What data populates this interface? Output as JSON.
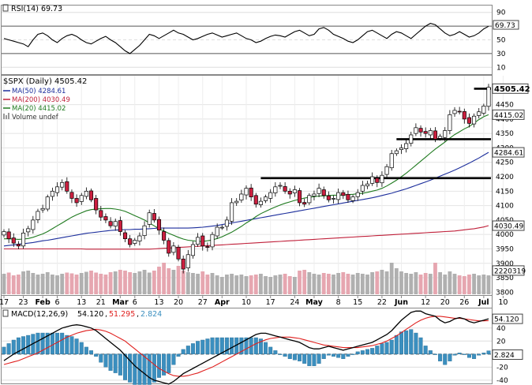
{
  "chart_data": {
    "type": "candlestick",
    "symbol_label": "$SPX (Daily)",
    "last_price": "4505.42",
    "colors": {
      "up": "#ffffff",
      "down": "#cc1f3f",
      "ma50": "#1c2e9c",
      "ma200": "#c0203a",
      "ma20": "#1f7a1f",
      "vol_up": "#b0b0b0",
      "vol_down": "#e6a6b0",
      "macd": "#000000",
      "macd_signal": "#e0201e",
      "macd_hist": "#3b8fbf",
      "rsi": "#000000",
      "support": "#000000"
    },
    "rsi_panel": {
      "legend": "RSI(14) 69.73",
      "last_value": "69.73",
      "ticks": [
        "90",
        "70",
        "50",
        "30",
        "10"
      ],
      "ylim": [
        0,
        100
      ],
      "series": [
        52,
        50,
        48,
        46,
        44,
        40,
        50,
        58,
        60,
        56,
        50,
        46,
        52,
        56,
        58,
        55,
        50,
        46,
        44,
        48,
        52,
        55,
        50,
        46,
        40,
        34,
        30,
        36,
        42,
        50,
        58,
        56,
        52,
        56,
        60,
        64,
        60,
        58,
        54,
        50,
        52,
        55,
        58,
        60,
        57,
        54,
        56,
        58,
        60,
        56,
        52,
        50,
        46,
        48,
        52,
        55,
        57,
        56,
        54,
        58,
        62,
        64,
        60,
        56,
        58,
        66,
        68,
        64,
        58,
        55,
        52,
        48,
        46,
        50,
        56,
        62,
        64,
        60,
        56,
        52,
        58,
        62,
        60,
        56,
        52,
        58,
        64,
        70,
        74,
        72,
        66,
        60,
        56,
        58,
        62,
        58,
        54,
        56,
        60,
        66,
        69.73
      ]
    },
    "price_panel": {
      "legend": {
        "symbol": "$SPX (Daily) 4505.42",
        "ma50": "MA(50) 4284.61",
        "ma200": "MA(200) 4030.49",
        "ma20": "MA(20) 4415.02",
        "volume": "Volume undef"
      },
      "ylim": [
        3790,
        4550
      ],
      "y_ticks": [
        "4450",
        "4400",
        "4350",
        "4300",
        "4250",
        "4200",
        "4150",
        "4100",
        "4050",
        "4000",
        "3950",
        "3900",
        "3850",
        "3800"
      ],
      "value_tags": [
        {
          "label": "4505.42",
          "value": 4505.42,
          "style": "bold"
        },
        {
          "label": "4415.02",
          "value": 4415.02,
          "style": "normal"
        },
        {
          "label": "4284.61",
          "value": 4284.61,
          "style": "normal"
        },
        {
          "label": "4030.49",
          "value": 4030.49,
          "style": "normal"
        },
        {
          "label": "2220319",
          "value": 3875,
          "style": "normal"
        }
      ],
      "support_lines": [
        {
          "value": 4505,
          "from": 97,
          "to": 101
        },
        {
          "value": 4330,
          "from": 81,
          "to": 101
        },
        {
          "value": 4195,
          "from": 53,
          "to": 101
        }
      ],
      "close": [
        4010,
        3985,
        3970,
        3960,
        4005,
        4020,
        4050,
        4080,
        4090,
        4130,
        4150,
        4165,
        4180,
        4150,
        4125,
        4110,
        4135,
        4150,
        4120,
        4085,
        4060,
        4050,
        4030,
        4045,
        4010,
        3985,
        3965,
        3980,
        3995,
        4030,
        4075,
        4050,
        4015,
        3980,
        3935,
        3960,
        3915,
        3880,
        3930,
        3965,
        3990,
        3960,
        3955,
        4000,
        4025,
        4025,
        4050,
        4110,
        4115,
        4140,
        4160,
        4130,
        4105,
        4115,
        4130,
        4145,
        4165,
        4170,
        4150,
        4140,
        4155,
        4110,
        4105,
        4135,
        4140,
        4160,
        4135,
        4120,
        4125,
        4145,
        4135,
        4120,
        4130,
        4145,
        4170,
        4175,
        4200,
        4180,
        4205,
        4235,
        4280,
        4290,
        4300,
        4315,
        4345,
        4370,
        4355,
        4350,
        4360,
        4330,
        4340,
        4360,
        4415,
        4430,
        4425,
        4400,
        4385,
        4410,
        4425,
        4445,
        4510
      ],
      "ma20": [
        3985,
        3985,
        3984,
        3983,
        3984,
        3986,
        3990,
        3996,
        4002,
        4010,
        4020,
        4030,
        4040,
        4050,
        4060,
        4068,
        4075,
        4082,
        4086,
        4088,
        4089,
        4090,
        4090,
        4088,
        4085,
        4080,
        4073,
        4065,
        4058,
        4050,
        4040,
        4030,
        4020,
        4012,
        4004,
        3997,
        3990,
        3984,
        3980,
        3978,
        3976,
        3976,
        3978,
        3981,
        3986,
        3992,
        4000,
        4008,
        4018,
        4028,
        4040,
        4050,
        4062,
        4072,
        4080,
        4088,
        4095,
        4102,
        4108,
        4113,
        4118,
        4122,
        4126,
        4129,
        4131,
        4133,
        4134,
        4135,
        4136,
        4136,
        4137,
        4138,
        4139,
        4141,
        4143,
        4146,
        4150,
        4154,
        4160,
        4168,
        4178,
        4188,
        4200,
        4212,
        4226,
        4240,
        4254,
        4268,
        4282,
        4296,
        4308,
        4320,
        4334,
        4346,
        4356,
        4366,
        4374,
        4386,
        4398,
        4408,
        4415
      ],
      "ma50": [
        3960,
        3962,
        3964,
        3966,
        3968,
        3970,
        3972,
        3975,
        3978,
        3980,
        3983,
        3986,
        3989,
        3992,
        3995,
        3998,
        4001,
        4004,
        4006,
        4008,
        4010,
        4012,
        4014,
        4015,
        4016,
        4017,
        4017,
        4018,
        4018,
        4019,
        4020,
        4021,
        4022,
        4022,
        4022,
        4022,
        4022,
        4022,
        4022,
        4023,
        4024,
        4025,
        4027,
        4029,
        4031,
        4034,
        4037,
        4040,
        4043,
        4046,
        4049,
        4052,
        4055,
        4058,
        4061,
        4064,
        4067,
        4070,
        4073,
        4076,
        4079,
        4082,
        4085,
        4088,
        4091,
        4094,
        4097,
        4100,
        4103,
        4106,
        4109,
        4112,
        4115,
        4118,
        4121,
        4124,
        4127,
        4131,
        4135,
        4139,
        4143,
        4148,
        4153,
        4158,
        4164,
        4170,
        4176,
        4182,
        4188,
        4195,
        4202,
        4209,
        4216,
        4223,
        4231,
        4239,
        4247,
        4256,
        4265,
        4275,
        4284.61
      ],
      "ma200": [
        3950,
        3950,
        3950,
        3950,
        3950,
        3950,
        3950,
        3950,
        3950,
        3950,
        3950,
        3950,
        3950,
        3950,
        3950,
        3950,
        3950,
        3949,
        3949,
        3949,
        3949,
        3949,
        3949,
        3949,
        3949,
        3949,
        3949,
        3949,
        3949,
        3949,
        3949,
        3950,
        3951,
        3952,
        3953,
        3954,
        3955,
        3956,
        3957,
        3958,
        3959,
        3960,
        3961,
        3962,
        3963,
        3964,
        3965,
        3966,
        3967,
        3968,
        3969,
        3970,
        3971,
        3972,
        3973,
        3974,
        3975,
        3976,
        3977,
        3978,
        3979,
        3980,
        3981,
        3982,
        3983,
        3984,
        3985,
        3986,
        3987,
        3988,
        3989,
        3990,
        3991,
        3992,
        3993,
        3994,
        3995,
        3996,
        3997,
        3998,
        3999,
        4000,
        4001,
        4002,
        4003,
        4004,
        4005,
        4006,
        4007,
        4008,
        4009,
        4010,
        4011,
        4012,
        4014,
        4016,
        4018,
        4020,
        4023,
        4026,
        4030.49
      ],
      "volume": [
        0.52,
        0.55,
        0.48,
        0.5,
        0.58,
        0.6,
        0.54,
        0.5,
        0.52,
        0.56,
        0.5,
        0.48,
        0.52,
        0.55,
        0.53,
        0.5,
        0.54,
        0.57,
        0.6,
        0.55,
        0.52,
        0.5,
        0.56,
        0.58,
        0.62,
        0.6,
        0.56,
        0.54,
        0.58,
        0.62,
        0.55,
        0.6,
        0.7,
        0.8,
        0.66,
        0.62,
        0.72,
        0.6,
        0.56,
        0.54,
        0.52,
        0.58,
        0.5,
        0.54,
        0.48,
        0.44,
        0.5,
        0.52,
        0.48,
        0.5,
        0.46,
        0.48,
        0.5,
        0.52,
        0.46,
        0.44,
        0.48,
        0.5,
        0.52,
        0.46,
        0.44,
        0.6,
        0.62,
        0.56,
        0.52,
        0.5,
        0.54,
        0.52,
        0.5,
        0.54,
        0.56,
        0.52,
        0.5,
        0.54,
        0.52,
        0.5,
        0.56,
        0.58,
        0.62,
        0.58,
        0.8,
        0.66,
        0.58,
        0.54,
        0.52,
        0.56,
        0.5,
        0.54,
        0.52,
        0.8,
        0.56,
        0.5,
        0.58,
        0.52,
        0.48,
        0.46,
        0.5,
        0.52,
        0.48,
        0.5,
        0.48
      ]
    },
    "macd_panel": {
      "legend": {
        "name": "MACD(12,26,9)",
        "macd": "54.120",
        "signal": "51.295",
        "hist": "2.824"
      },
      "last_macd": "54.120",
      "last_hist": "2.824",
      "ylim": [
        -45,
        70
      ],
      "y_ticks": [
        "40",
        "20",
        "-20",
        "-40"
      ],
      "macd": [
        -10,
        -5,
        0,
        4,
        8,
        12,
        16,
        20,
        24,
        28,
        32,
        36,
        40,
        42,
        44,
        45,
        44,
        42,
        40,
        36,
        30,
        24,
        18,
        12,
        6,
        -2,
        -10,
        -18,
        -24,
        -30,
        -36,
        -40,
        -42,
        -44,
        -46,
        -42,
        -36,
        -30,
        -26,
        -22,
        -18,
        -14,
        -10,
        -6,
        -2,
        2,
        6,
        10,
        14,
        18,
        22,
        26,
        30,
        32,
        32,
        30,
        28,
        26,
        24,
        22,
        20,
        18,
        14,
        10,
        8,
        8,
        10,
        12,
        10,
        8,
        6,
        8,
        10,
        12,
        14,
        16,
        18,
        22,
        26,
        30,
        36,
        44,
        52,
        58,
        64,
        66,
        66,
        62,
        60,
        58,
        52,
        48,
        50,
        54,
        56,
        54,
        50,
        48,
        50,
        52,
        54.12
      ],
      "signal": [
        -16,
        -14,
        -12,
        -10,
        -7,
        -4,
        -1,
        2,
        6,
        10,
        14,
        18,
        22,
        26,
        29,
        32,
        34,
        36,
        37,
        38,
        37,
        35,
        32,
        28,
        24,
        20,
        14,
        8,
        2,
        -4,
        -10,
        -16,
        -22,
        -26,
        -30,
        -33,
        -34,
        -34,
        -33,
        -31,
        -29,
        -26,
        -23,
        -20,
        -16,
        -12,
        -8,
        -4,
        0,
        4,
        8,
        12,
        16,
        19,
        22,
        24,
        25,
        26,
        26,
        26,
        25,
        24,
        22,
        20,
        18,
        16,
        14,
        13,
        12,
        11,
        10,
        10,
        10,
        10,
        11,
        12,
        13,
        15,
        17,
        20,
        24,
        28,
        33,
        38,
        43,
        48,
        52,
        55,
        57,
        58,
        58,
        57,
        56,
        55,
        55,
        54,
        53,
        52,
        51,
        51,
        51.295
      ]
    },
    "x_axis": {
      "labels": [
        {
          "text": "17",
          "index": 0,
          "bold": false
        },
        {
          "text": "23",
          "index": 4,
          "bold": false
        },
        {
          "text": "Feb",
          "index": 8,
          "bold": true
        },
        {
          "text": "6",
          "index": 11,
          "bold": false
        },
        {
          "text": "13",
          "index": 16,
          "bold": false
        },
        {
          "text": "21",
          "index": 20,
          "bold": false
        },
        {
          "text": "Mar",
          "index": 24,
          "bold": true
        },
        {
          "text": "6",
          "index": 27,
          "bold": false
        },
        {
          "text": "13",
          "index": 32,
          "bold": false
        },
        {
          "text": "20",
          "index": 36,
          "bold": false
        },
        {
          "text": "27",
          "index": 41,
          "bold": false
        },
        {
          "text": "Apr",
          "index": 45,
          "bold": true
        },
        {
          "text": "10",
          "index": 50,
          "bold": false
        },
        {
          "text": "17",
          "index": 55,
          "bold": false
        },
        {
          "text": "24",
          "index": 60,
          "bold": false
        },
        {
          "text": "May",
          "index": 64,
          "bold": true
        },
        {
          "text": "8",
          "index": 69,
          "bold": false
        },
        {
          "text": "15",
          "index": 73,
          "bold": false
        },
        {
          "text": "22",
          "index": 78,
          "bold": false
        },
        {
          "text": "Jun",
          "index": 82,
          "bold": true
        },
        {
          "text": "12",
          "index": 87,
          "bold": false
        },
        {
          "text": "20",
          "index": 91,
          "bold": false
        },
        {
          "text": "26",
          "index": 95,
          "bold": false
        },
        {
          "text": "Jul",
          "index": 99,
          "bold": true
        },
        {
          "text": "10",
          "index": 103,
          "bold": false
        }
      ]
    }
  }
}
